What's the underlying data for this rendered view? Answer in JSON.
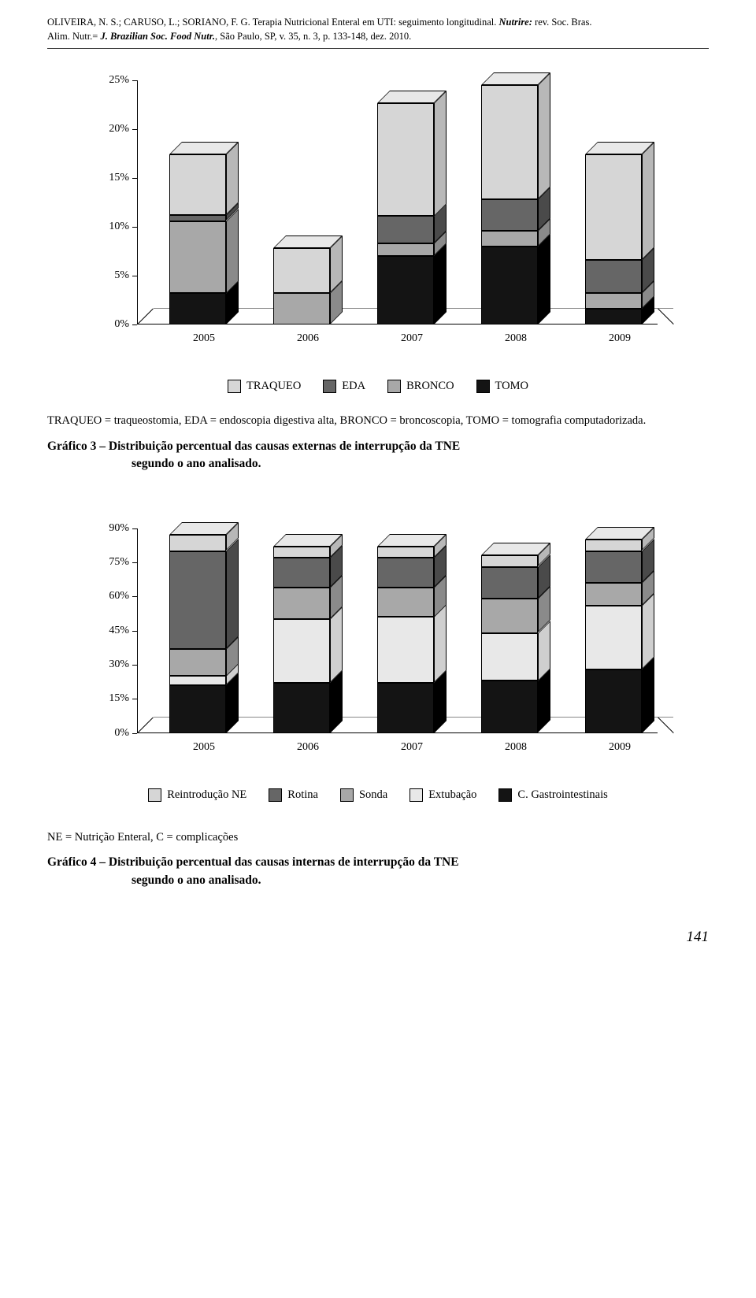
{
  "header": {
    "line1_authors": "OLIVEIRA, N. S.; CARUSO, L.; SORIANO, F. G. Terapia Nutricional Enteral em UTI: seguimento longitudinal. ",
    "line1_journal": "Nutrire: ",
    "line1_rest": "rev. Soc. Bras.",
    "line2_start": "Alim. Nutr.= ",
    "line2_journal": "J. Brazilian Soc. Food Nutr.",
    "line2_rest": ", São Paulo, SP, v. 35, n. 3, p. 133-148, dez. 2010."
  },
  "chart3": {
    "type": "stacked-bar-3d",
    "categories": [
      "2005",
      "2006",
      "2007",
      "2008",
      "2009"
    ],
    "ylabels": [
      "0%",
      "5%",
      "10%",
      "15%",
      "20%",
      "25%"
    ],
    "ymax": 25,
    "series": [
      {
        "name": "TRAQUEO",
        "color": "#d6d6d6",
        "side": "#b8b8b8",
        "topc": "#e8e8e8"
      },
      {
        "name": "EDA",
        "color": "#666666",
        "side": "#4a4a4a",
        "topc": "#7e7e7e"
      },
      {
        "name": "BRONCO",
        "color": "#a8a8a8",
        "side": "#8a8a8a",
        "topc": "#c0c0c0"
      },
      {
        "name": "TOMO",
        "color": "#141414",
        "side": "#000000",
        "topc": "#303030"
      }
    ],
    "data": [
      [
        6.2,
        0.6,
        7.4,
        3.2
      ],
      [
        4.6,
        0,
        3.2,
        0
      ],
      [
        11.6,
        2.8,
        1.3,
        7.0
      ],
      [
        11.7,
        3.2,
        1.6,
        8.0
      ],
      [
        10.8,
        3.4,
        1.6,
        1.6
      ]
    ],
    "legend_order": [
      "TRAQUEO",
      "EDA",
      "BRONCO",
      "TOMO"
    ],
    "footnote": "TRAQUEO = traqueostomia, EDA = endoscopia digestiva alta, BRONCO = broncoscopia, TOMO = tomografia computadorizada.",
    "caption_lead": "Gráfico 3 – ",
    "caption_desc": "Distribuição percentual das causas externas de interrupção da TNE",
    "caption_line2": "segundo o ano analisado."
  },
  "chart4": {
    "type": "stacked-bar-3d",
    "categories": [
      "2005",
      "2006",
      "2007",
      "2008",
      "2009"
    ],
    "ylabels": [
      "0%",
      "15%",
      "30%",
      "45%",
      "60%",
      "75%",
      "90%"
    ],
    "ymax": 90,
    "series": [
      {
        "name": "Reintrodução NE",
        "color": "#d6d6d6",
        "side": "#b8b8b8",
        "topc": "#e8e8e8"
      },
      {
        "name": "Rotina",
        "color": "#666666",
        "side": "#4a4a4a",
        "topc": "#7e7e7e"
      },
      {
        "name": "Sonda",
        "color": "#a8a8a8",
        "side": "#8a8a8a",
        "topc": "#c0c0c0"
      },
      {
        "name": "Extubação",
        "color": "#e8e8e8",
        "side": "#cfcfcf",
        "topc": "#f2f2f2"
      },
      {
        "name": "C. Gastrointestinais",
        "color": "#141414",
        "side": "#000000",
        "topc": "#303030"
      }
    ],
    "data": [
      [
        7,
        43,
        12,
        4,
        21
      ],
      [
        5,
        13,
        14,
        28,
        22
      ],
      [
        5,
        13,
        13,
        29,
        22
      ],
      [
        5,
        14,
        15,
        21,
        23
      ],
      [
        5,
        14,
        10,
        28,
        28
      ]
    ],
    "legend_order": [
      "Reintrodução NE",
      "Rotina",
      "Sonda",
      "Extubação",
      "C. Gastrointestinais"
    ],
    "footnote": "NE = Nutrição Enteral, C = complicações",
    "caption_lead": "Gráfico 4 – ",
    "caption_desc": "Distribuição percentual das causas internas de interrupção da TNE",
    "caption_line2": "segundo o ano analisado."
  },
  "page_number": "141",
  "colors": {
    "text": "#000000",
    "rule": "#333333",
    "background": "#ffffff"
  },
  "fonts": {
    "body_family": "Georgia, 'Times New Roman', serif",
    "header_size_pt": 9,
    "axis_size_pt": 10,
    "legend_size_pt": 11,
    "caption_size_pt": 12
  }
}
